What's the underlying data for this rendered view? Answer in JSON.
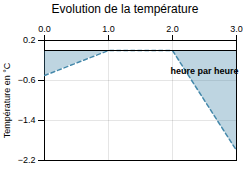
{
  "chart_data": {
    "type": "area",
    "title": "Evolution de la température",
    "ylabel": "Température en °C",
    "x": [
      0,
      1,
      2,
      3
    ],
    "values": [
      -0.5,
      0.0,
      0.0,
      -2.0
    ],
    "baseline": 0,
    "color": "#4488aa",
    "line_style": "dashed",
    "xlim": [
      0,
      3
    ],
    "ylim": [
      -2.2,
      0.2
    ],
    "xticks": [
      0,
      1,
      2,
      3
    ],
    "yticks": [
      0.2,
      -0.6,
      -1.4,
      -2.2
    ],
    "grid": true,
    "annotations": [
      {
        "text": "heure par heure",
        "x": 2.5,
        "y": -0.35
      }
    ]
  }
}
